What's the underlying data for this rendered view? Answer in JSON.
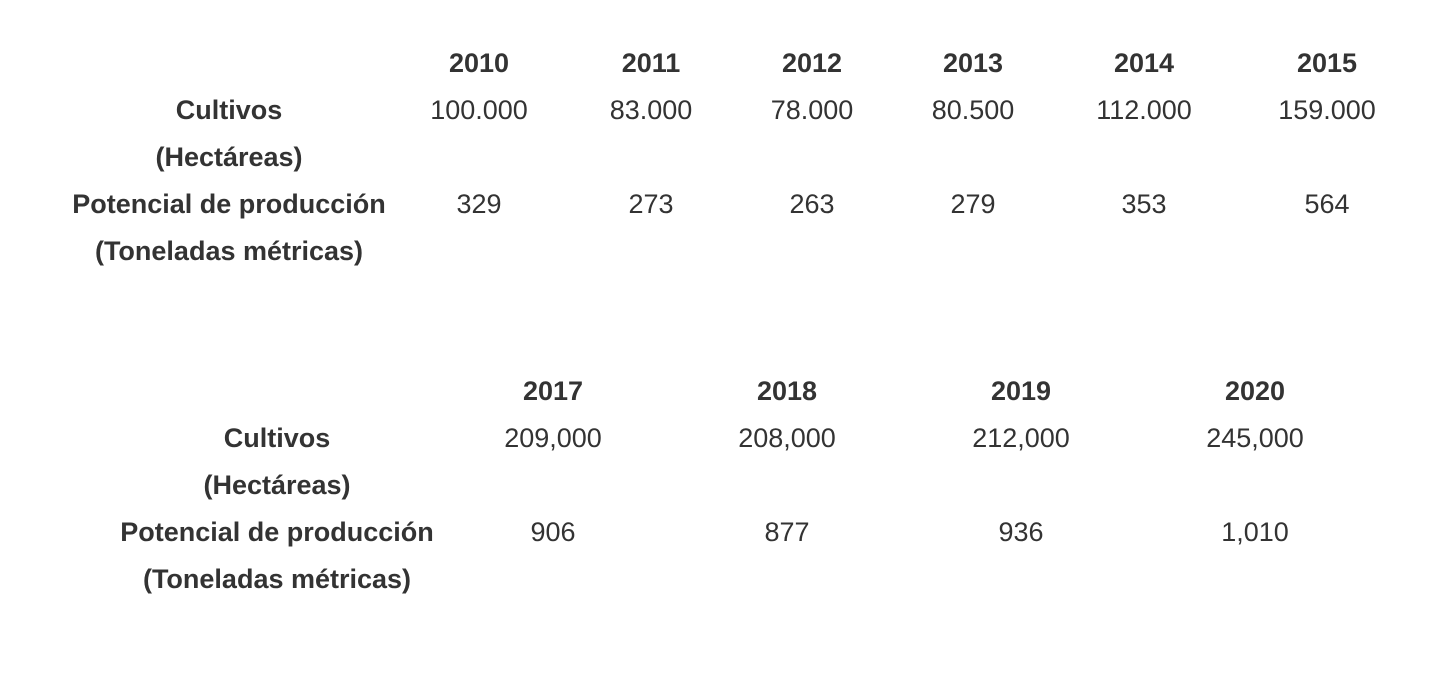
{
  "tables": [
    {
      "years": [
        "2010",
        "2011",
        "2012",
        "2013",
        "2014",
        "2015"
      ],
      "rows": [
        {
          "label_line1": "Cultivos",
          "label_line2": "(Hectáreas)",
          "values": [
            "100.000",
            "83.000",
            "78.000",
            "80.500",
            "112.000",
            "159.000"
          ]
        },
        {
          "label_line1": "Potencial de producción",
          "label_line2": "(Toneladas métricas)",
          "values": [
            "329",
            "273",
            "263",
            "279",
            "353",
            "564"
          ]
        }
      ]
    },
    {
      "years": [
        "2017",
        "2018",
        "2019",
        "2020"
      ],
      "rows": [
        {
          "label_line1": "Cultivos",
          "label_line2": "(Hectáreas)",
          "values": [
            "209,000",
            "208,000",
            "212,000",
            "245,000"
          ]
        },
        {
          "label_line1": "Potencial de producción",
          "label_line2": "(Toneladas métricas)",
          "values": [
            "906",
            "877",
            "936",
            "1,010"
          ]
        }
      ]
    }
  ],
  "colors": {
    "text": "#333333",
    "background": "#ffffff"
  }
}
